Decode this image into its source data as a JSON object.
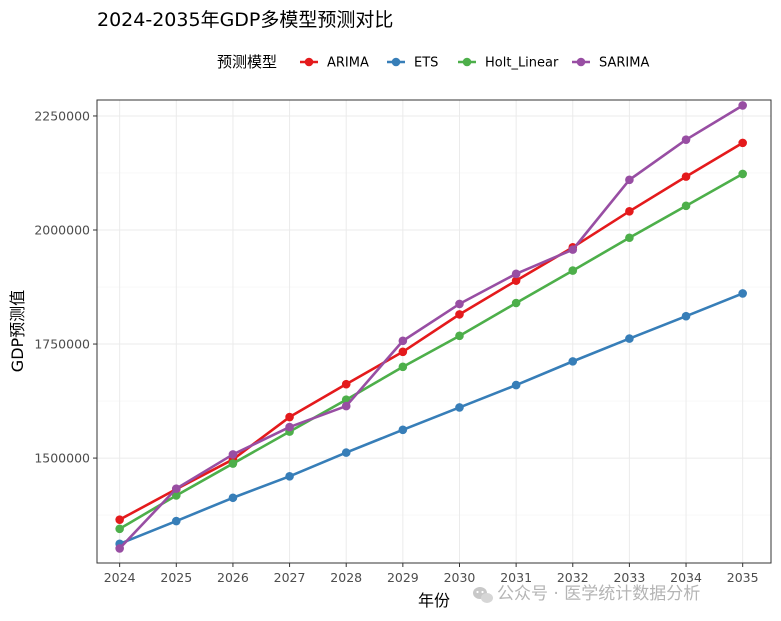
{
  "chart_data": {
    "type": "line",
    "title": "2024-2035年GDP多模型预测对比",
    "xlabel": "年份",
    "ylabel": "GDP预测值",
    "legend_title": "预测模型",
    "legend_position": "top",
    "x": [
      2024,
      2025,
      2026,
      2027,
      2028,
      2029,
      2030,
      2031,
      2032,
      2033,
      2034,
      2035
    ],
    "x_tick_labels": [
      "2024",
      "2025",
      "2026",
      "2027",
      "2028",
      "2029",
      "2030",
      "2031",
      "2032",
      "2033",
      "2034",
      "2035"
    ],
    "xlim": [
      2023.6,
      2035.5
    ],
    "ylim": [
      1270000,
      2285000
    ],
    "y_ticks": [
      1500000,
      1750000,
      2000000,
      2250000
    ],
    "y_tick_labels": [
      "1500000",
      "1750000",
      "2000000",
      "2250000"
    ],
    "grid": true,
    "series": [
      {
        "name": "ARIMA",
        "color": "#E41A1C",
        "values": [
          1365000,
          1432000,
          1497000,
          1590000,
          1662000,
          1733000,
          1815000,
          1889000,
          1962000,
          2041000,
          2117000,
          2191000
        ]
      },
      {
        "name": "ETS",
        "color": "#377EB8",
        "values": [
          1312000,
          1362000,
          1413000,
          1460000,
          1512000,
          1562000,
          1611000,
          1660000,
          1712000,
          1762000,
          1811000,
          1861000
        ]
      },
      {
        "name": "Holt_Linear",
        "color": "#4DAF4A",
        "values": [
          1345000,
          1418000,
          1488000,
          1558000,
          1628000,
          1700000,
          1768000,
          1840000,
          1911000,
          1983000,
          2053000,
          2123000
        ]
      },
      {
        "name": "SARIMA",
        "color": "#984EA3",
        "values": [
          1302000,
          1433000,
          1508000,
          1568000,
          1614000,
          1757000,
          1838000,
          1904000,
          1957000,
          2110000,
          2198000,
          2273000
        ]
      }
    ]
  },
  "watermark": {
    "icon": "wechat-icon",
    "text": "公众号 · 医学统计数据分析"
  }
}
